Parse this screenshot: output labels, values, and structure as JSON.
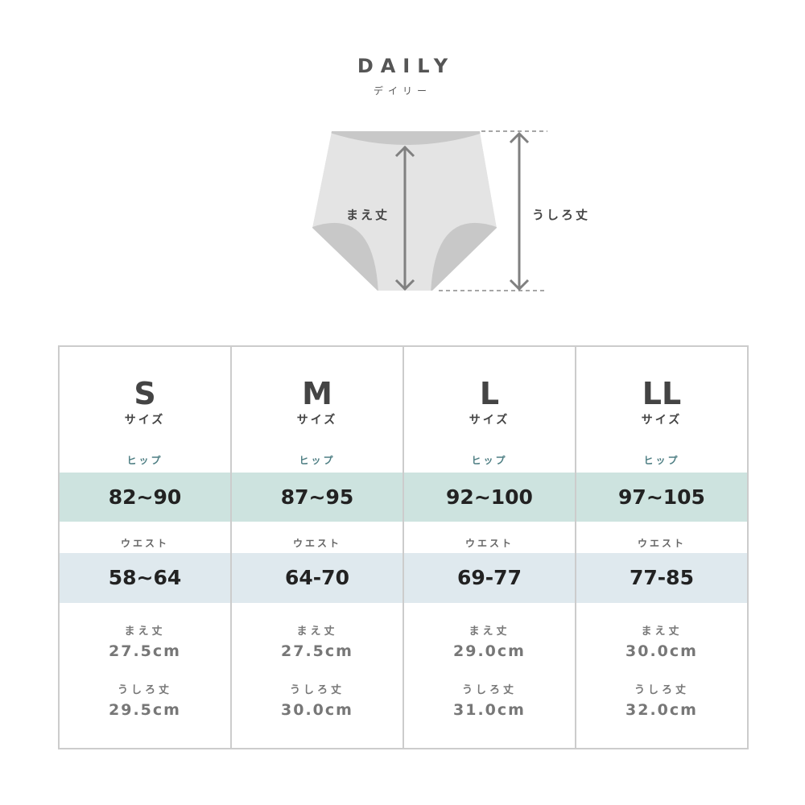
{
  "header": {
    "title": "DAILY",
    "subtitle": "デイリー"
  },
  "diagram": {
    "front_label": "まえ丈",
    "back_label": "うしろ丈"
  },
  "colors": {
    "hip_band": "#cde3df",
    "waist_band": "#dfe9ee",
    "hip_label": "#4f7f84",
    "border": "#cccccc"
  },
  "labels": {
    "size_suffix": "サイズ",
    "hip": "ヒップ",
    "waist": "ウエスト",
    "front": "まえ丈",
    "back": "うしろ丈"
  },
  "sizes": [
    {
      "size": "S",
      "hip": "82~90",
      "waist": "58~64",
      "front": "27.5cm",
      "back": "29.5cm"
    },
    {
      "size": "M",
      "hip": "87~95",
      "waist": "64-70",
      "front": "27.5cm",
      "back": "30.0cm"
    },
    {
      "size": "L",
      "hip": "92~100",
      "waist": "69-77",
      "front": "29.0cm",
      "back": "31.0cm"
    },
    {
      "size": "LL",
      "hip": "97~105",
      "waist": "77-85",
      "front": "30.0cm",
      "back": "32.0cm"
    }
  ]
}
